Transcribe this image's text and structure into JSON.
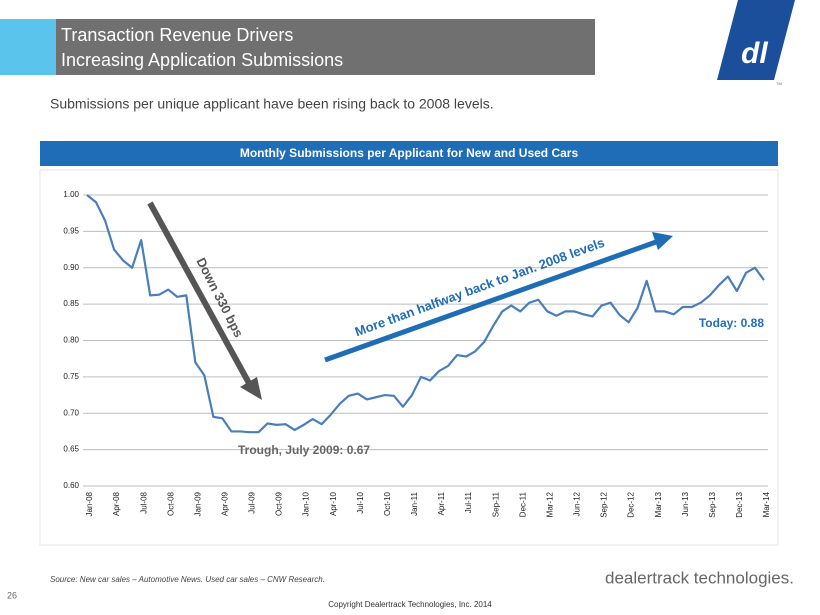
{
  "header": {
    "title_line1": "Transaction Revenue Drivers",
    "title_line2": "Increasing Application Submissions",
    "subtitle": "Submissions per unique applicant have been rising back to 2008 levels."
  },
  "chart_data": {
    "type": "line",
    "title": "Monthly Submissions per Applicant for New and Used Cars",
    "categories": [
      "Jan-08",
      null,
      null,
      "Apr-08",
      null,
      null,
      "Jul-08",
      null,
      null,
      "Oct-08",
      null,
      null,
      "Jan-09",
      null,
      null,
      "Apr-09",
      null,
      null,
      "Jul-09",
      null,
      null,
      "Oct-09",
      null,
      null,
      "Jan-10",
      null,
      null,
      "Apr-10",
      null,
      null,
      "Jul-10",
      null,
      null,
      "Oct-10",
      null,
      null,
      "Jan-11",
      null,
      null,
      "Apr-11",
      null,
      null,
      "Jul-11",
      null,
      null,
      "Sep-11",
      null,
      null,
      "Dec-11",
      null,
      null,
      "Mar-12",
      null,
      null,
      "Jun-12",
      null,
      null,
      "Sep-12",
      null,
      null,
      "Dec-12",
      null,
      null,
      "Mar-13",
      null,
      null,
      "Jun-13",
      null,
      null,
      "Sep-13",
      null,
      null,
      "Dec-13",
      null,
      null,
      "Mar-14"
    ],
    "series": [
      {
        "name": "Submissions per Applicant",
        "color": "#4a7ebb",
        "values": [
          1.0,
          0.99,
          0.965,
          0.925,
          0.91,
          0.9,
          0.938,
          0.862,
          0.863,
          0.87,
          0.86,
          0.862,
          0.77,
          0.752,
          0.695,
          0.693,
          0.675,
          0.675,
          0.674,
          0.674,
          0.686,
          0.684,
          0.685,
          0.677,
          0.684,
          0.692,
          0.685,
          0.698,
          0.713,
          0.724,
          0.727,
          0.719,
          0.722,
          0.725,
          0.724,
          0.709,
          0.725,
          0.75,
          0.745,
          0.758,
          0.765,
          0.78,
          0.778,
          0.785,
          0.798,
          0.82,
          0.84,
          0.848,
          0.84,
          0.852,
          0.856,
          0.84,
          0.834,
          0.84,
          0.84,
          0.836,
          0.833,
          0.848,
          0.852,
          0.835,
          0.825,
          0.845,
          0.882,
          0.84,
          0.84,
          0.836,
          0.846,
          0.846,
          0.852,
          0.862,
          0.876,
          0.888,
          0.868,
          0.893,
          0.9,
          0.883
        ]
      }
    ],
    "ylim": [
      0.6,
      1.0
    ],
    "yticks": [
      {
        "value": 0.6,
        "label": "0.60"
      },
      {
        "value": 0.65,
        "label": "0.65"
      },
      {
        "value": 0.7,
        "label": "0.70"
      },
      {
        "value": 0.75,
        "label": "0.75"
      },
      {
        "value": 0.8,
        "label": "0.80"
      },
      {
        "value": 0.85,
        "label": "0.85"
      },
      {
        "value": 0.9,
        "label": "0.90"
      },
      {
        "value": 0.95,
        "label": "0.95"
      },
      {
        "value": 1.0,
        "label": "1.00"
      }
    ],
    "grid": true,
    "annotations": {
      "decline": "Down 330 bps",
      "recovery": "More than halfway back to Jan. 2008 levels",
      "trough": "Trough, July 2009: 0.67",
      "today": "Today: 0.88"
    }
  },
  "footer": {
    "source": "Source: New car sales – Automotive News. Used car sales – CNW Research.",
    "page": "26",
    "brand": "dealertrack technologies.",
    "copyright": "Copyright Dealertrack Technologies, Inc. 2014",
    "tm": "TM"
  }
}
